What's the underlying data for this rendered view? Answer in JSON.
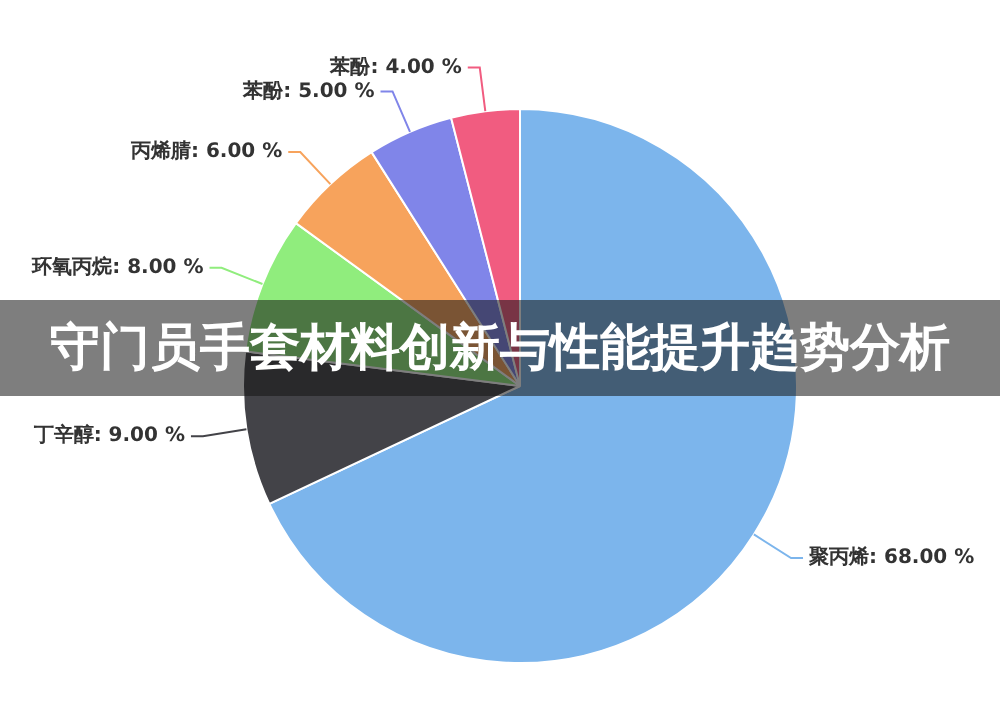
{
  "chart_data": {
    "type": "pie",
    "title": "守门员手套材料创新与性能提升趋势分析",
    "categories": [
      "聚丙烯",
      "丁辛醇",
      "环氧丙烷",
      "丙烯腈",
      "苯酚",
      "苯酚"
    ],
    "values": [
      68,
      9,
      8,
      6,
      5,
      4
    ],
    "value_labels": [
      "68.00 %",
      "9.00 %",
      "8.00 %",
      "6.00 %",
      "5.00 %",
      "4.00 %"
    ],
    "colors": [
      "#7cb5ec",
      "#434348",
      "#90ed7d",
      "#f7a35c",
      "#8085e9",
      "#f15c80"
    ],
    "legend": false
  }
}
